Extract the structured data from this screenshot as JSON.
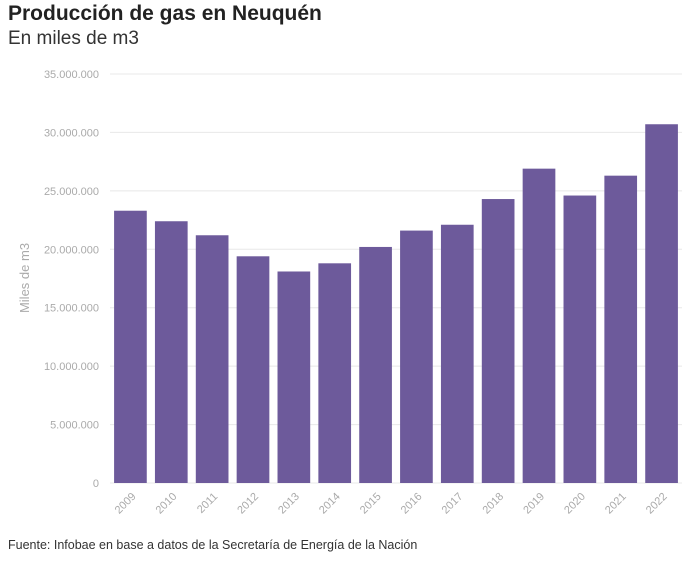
{
  "title": "Producción de gas en Neuquén",
  "subtitle": "En miles de m3",
  "source": "Fuente: Infobae en base a datos de la Secretaría de Energía de la Nación",
  "colors": {
    "bar": "#6d5a9b",
    "grid": "#e8e8e8",
    "tick": "#aaaaaa"
  },
  "chart_data": {
    "type": "bar",
    "title": "Producción de gas en Neuquén",
    "subtitle": "En miles de m3",
    "xlabel": "",
    "ylabel": "Miles de m3",
    "ylim": [
      0,
      35000000
    ],
    "yticks": [
      0,
      5000000,
      10000000,
      15000000,
      20000000,
      25000000,
      30000000,
      35000000
    ],
    "ytick_labels": [
      "0",
      "5.000.000",
      "10.000.000",
      "15.000.000",
      "20.000.000",
      "25.000.000",
      "30.000.000",
      "35.000.000"
    ],
    "grid": true,
    "categories": [
      "2009",
      "2010",
      "2011",
      "2012",
      "2013",
      "2014",
      "2015",
      "2016",
      "2017",
      "2018",
      "2019",
      "2020",
      "2021",
      "2022"
    ],
    "values": [
      23300000,
      22400000,
      21200000,
      19400000,
      18100000,
      18800000,
      20200000,
      21600000,
      22100000,
      24300000,
      26900000,
      24600000,
      26300000,
      30700000
    ]
  }
}
